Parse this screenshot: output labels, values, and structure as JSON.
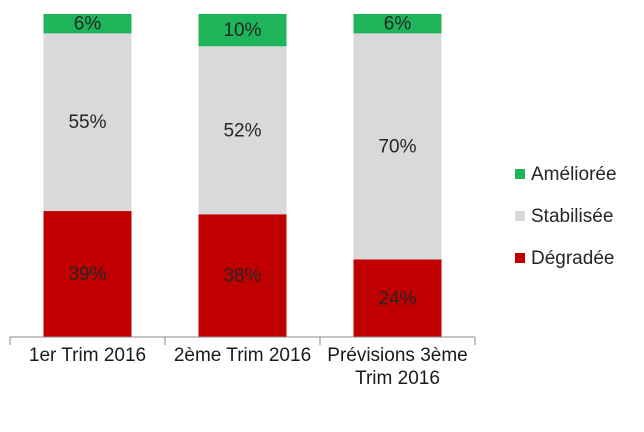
{
  "chart_data": {
    "type": "stacked_bar",
    "categories": [
      "1er Trim 2016",
      "2ème Trim 2016",
      "Prévisions 3ème Trim 2016"
    ],
    "series": [
      {
        "name": "Dégradée",
        "color": "#c00000",
        "values": [
          39,
          38,
          24
        ],
        "value_labels": [
          "39%",
          "38%",
          "24%"
        ]
      },
      {
        "name": "Stabilisée",
        "color": "#d9d9d9",
        "values": [
          55,
          52,
          70
        ],
        "value_labels": [
          "55%",
          "52%",
          "70%"
        ]
      },
      {
        "name": "Améliorée",
        "color": "#1db45a",
        "values": [
          6,
          10,
          6
        ],
        "value_labels": [
          "6%",
          "10%",
          "6%"
        ]
      }
    ],
    "legend": "right"
  }
}
